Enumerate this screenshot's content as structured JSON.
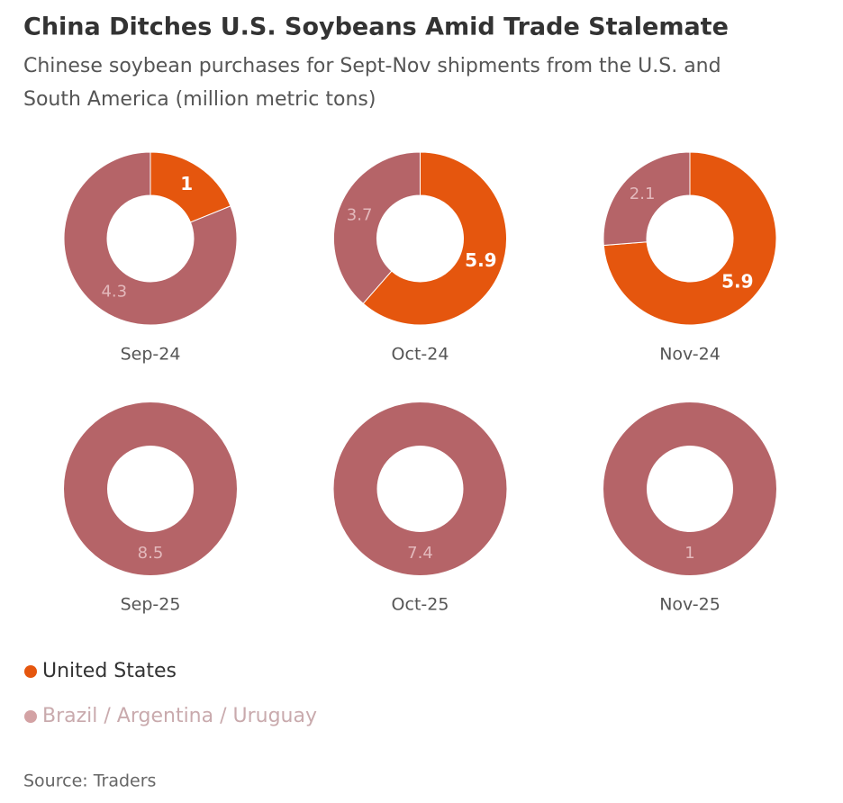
{
  "title": "China Ditches U.S. Soybeans Amid Trade Stalemate",
  "subtitle": [
    "Chinese soybean purchases for Sept-Nov shipments from the U.S. and",
    "South America (million metric tons)"
  ],
  "legend": [
    {
      "name": "United States",
      "color": "#e5560e"
    },
    {
      "name": "Brazil / Argentina / Uruguay",
      "color": "#b56468"
    }
  ],
  "chart_data": [
    {
      "type": "donut",
      "label": "Sep-24",
      "values": [
        1,
        4.3
      ]
    },
    {
      "type": "donut",
      "label": "Oct-24",
      "values": [
        5.9,
        3.7
      ]
    },
    {
      "type": "donut",
      "label": "Nov-24",
      "values": [
        5.9,
        2.1
      ]
    },
    {
      "type": "donut",
      "label": "Sep-25",
      "values": [
        null,
        8.5
      ]
    },
    {
      "type": "donut",
      "label": "Oct-25",
      "values": [
        null,
        7.4
      ]
    },
    {
      "type": "donut",
      "label": "Nov-25",
      "values": [
        null,
        1
      ]
    }
  ],
  "source": "Source: Traders"
}
